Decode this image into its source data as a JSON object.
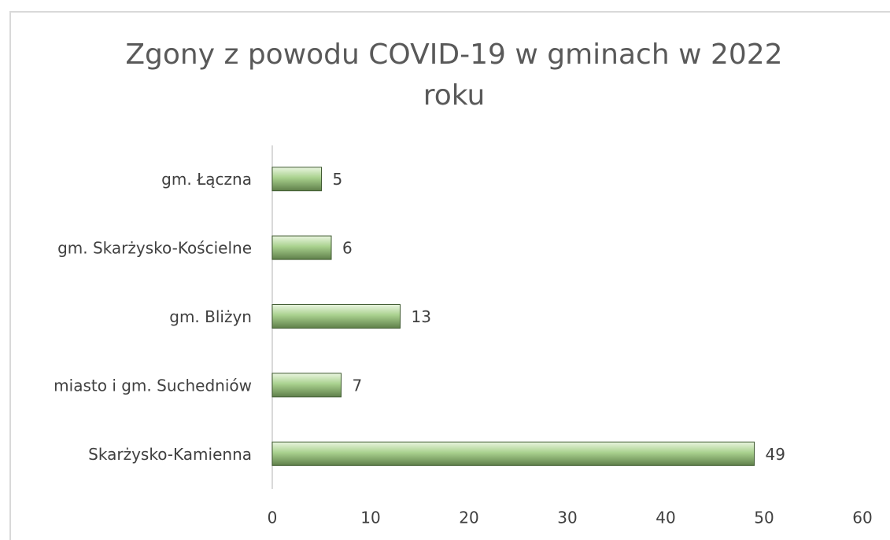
{
  "chart_data": {
    "type": "bar",
    "orientation": "horizontal",
    "title": "Zgony z powodu COVID-19 w gminach w 2022 roku",
    "categories": [
      "gm. Łączna",
      "gm. Skarżysko-Kościelne",
      "gm. Bliżyn",
      "miasto i gm. Suchedniów",
      "Skarżysko-Kamienna"
    ],
    "values": [
      5,
      6,
      13,
      7,
      49
    ],
    "color": "#a9d18e",
    "xlim": [
      0,
      60
    ],
    "xticks": [
      0,
      10,
      20,
      30,
      40,
      50,
      60
    ],
    "grid": false
  }
}
